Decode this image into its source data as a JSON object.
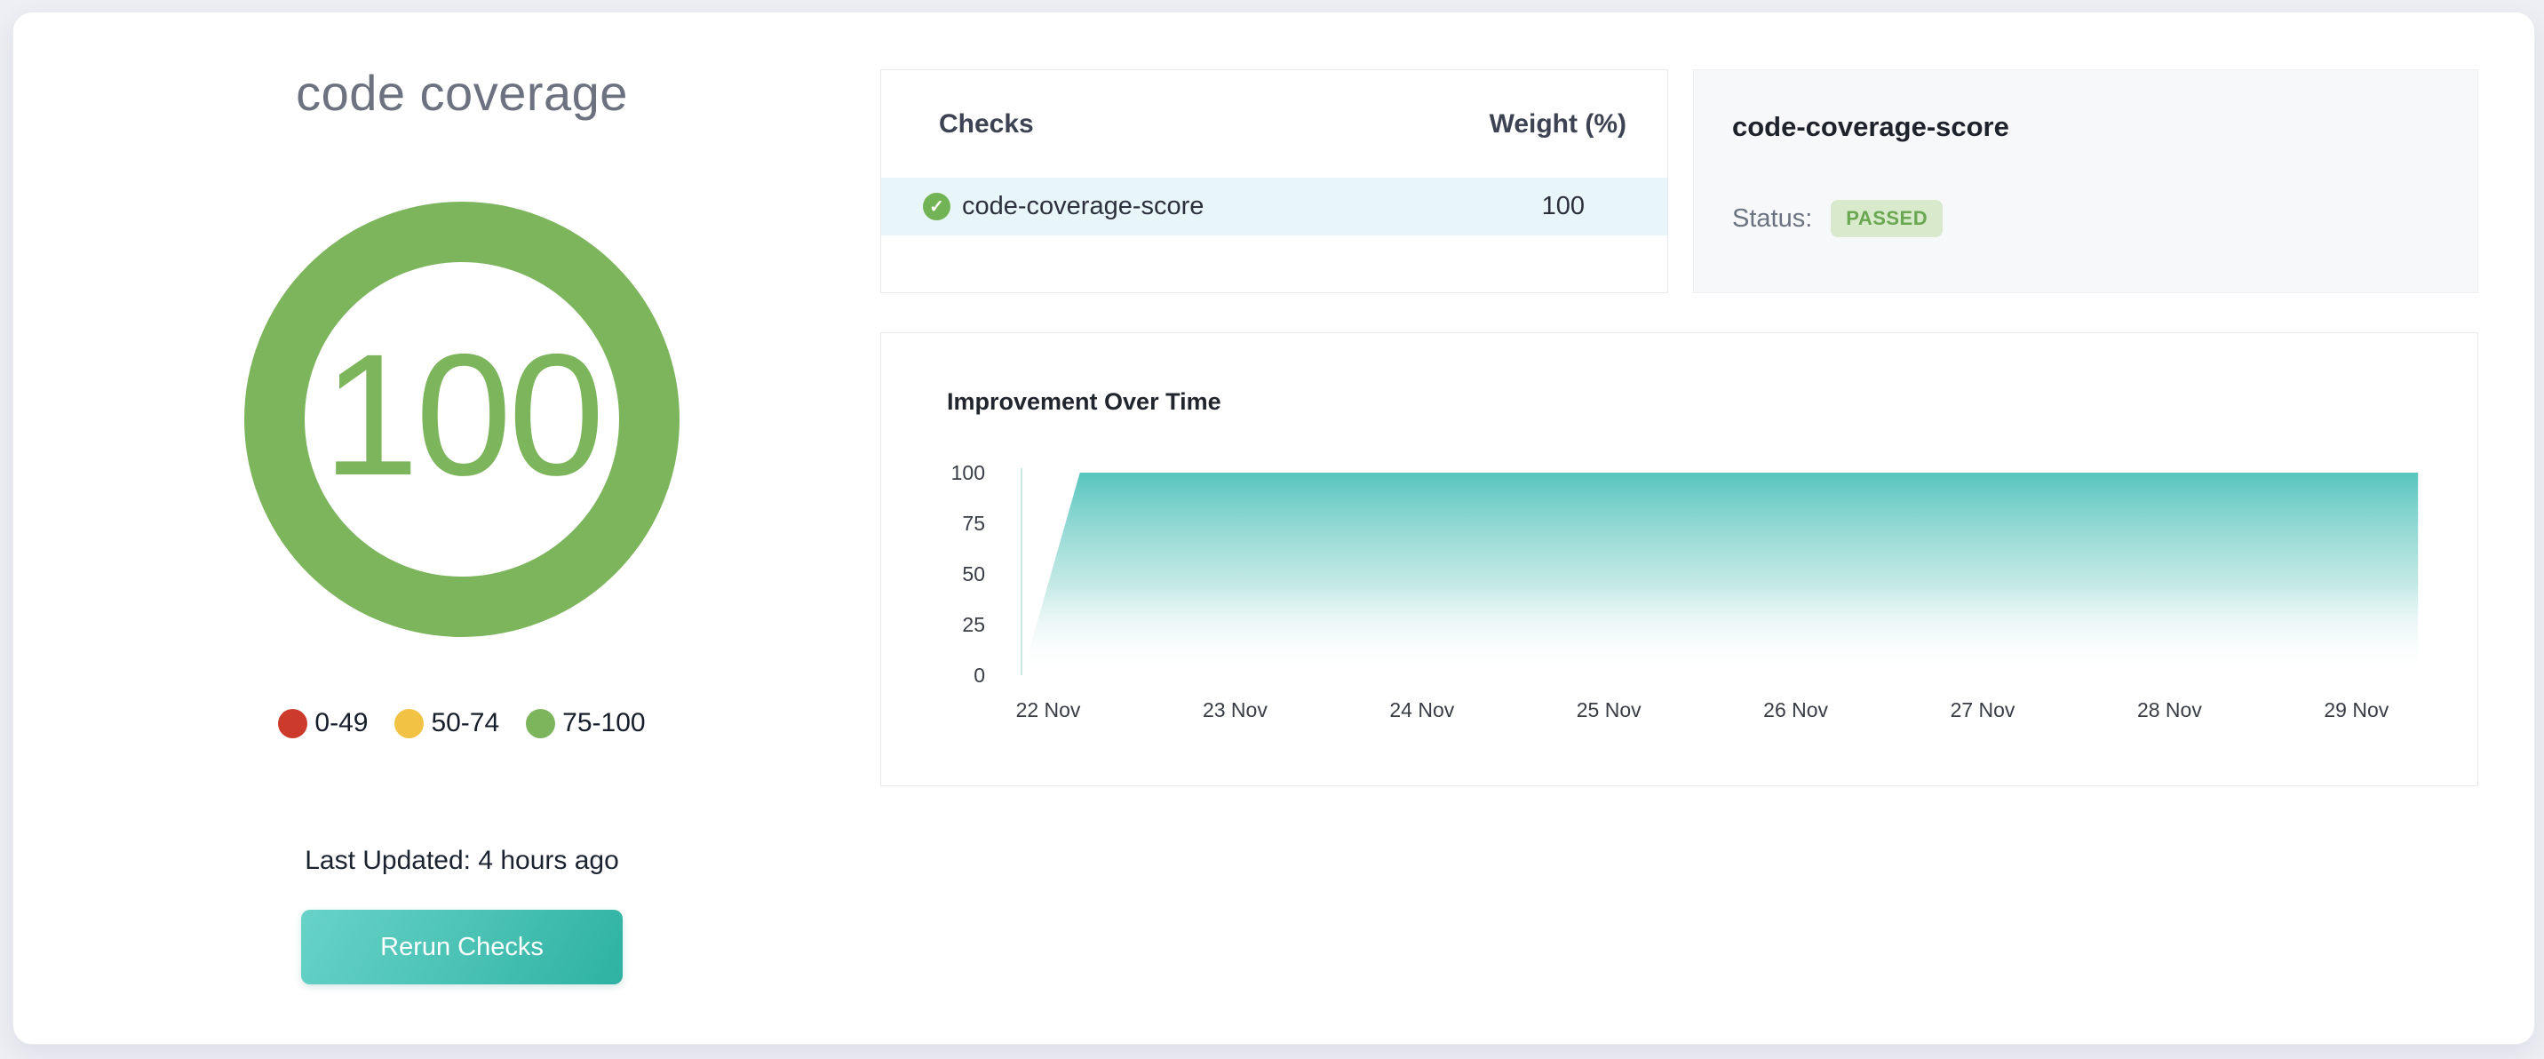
{
  "page": {
    "title": "code coverage"
  },
  "gauge": {
    "score": "100",
    "color": "#7cb55b"
  },
  "legend": [
    {
      "label": "0-49",
      "color": "#cc3a2b"
    },
    {
      "label": "50-74",
      "color": "#f2c245"
    },
    {
      "label": "75-100",
      "color": "#7cb55b"
    }
  ],
  "last_updated": "Last Updated: 4 hours ago",
  "rerun_button": {
    "label": "Rerun Checks",
    "gradient": [
      "#68d3c8",
      "#2eb2a2"
    ]
  },
  "checks_table": {
    "headers": [
      "Checks",
      "Weight (%)"
    ],
    "rows": [
      {
        "name": "code-coverage-score",
        "weight": "100",
        "status_icon": "passed-check",
        "row_bg": "#e9f6f9",
        "icon_color": "#72b356",
        "check_glyph": "✓"
      }
    ]
  },
  "detail_panel": {
    "title": "code-coverage-score",
    "status_label": "Status:",
    "status_value": "PASSED",
    "badge_bg": "#d8e9cc",
    "badge_text_color": "#69a750"
  },
  "chart_data": {
    "type": "area",
    "title": "Improvement Over Time",
    "x_ticks": [
      "22 Nov",
      "23 Nov",
      "24 Nov",
      "25 Nov",
      "26 Nov",
      "27 Nov",
      "28 Nov",
      "29 Nov"
    ],
    "x_tick_days": [
      22,
      23,
      24,
      25,
      26,
      27,
      28,
      29
    ],
    "y_ticks": [
      100,
      75,
      50,
      25,
      0
    ],
    "ylim": [
      0,
      100
    ],
    "xlabel": "",
    "ylabel": "",
    "grid": false,
    "legend_position": "none",
    "x_axis_note": "x values below are day-of-November positions",
    "series": [
      {
        "name": "code-coverage-score",
        "points": [
          {
            "x": 21.86,
            "y": 0
          },
          {
            "x": 22.17,
            "y": 100
          },
          {
            "x": 29.33,
            "y": 100
          }
        ]
      }
    ],
    "area_top_color": "#57c5be",
    "area_mid_color": "#9bdad4",
    "axis_color": "#cbe7e4"
  }
}
